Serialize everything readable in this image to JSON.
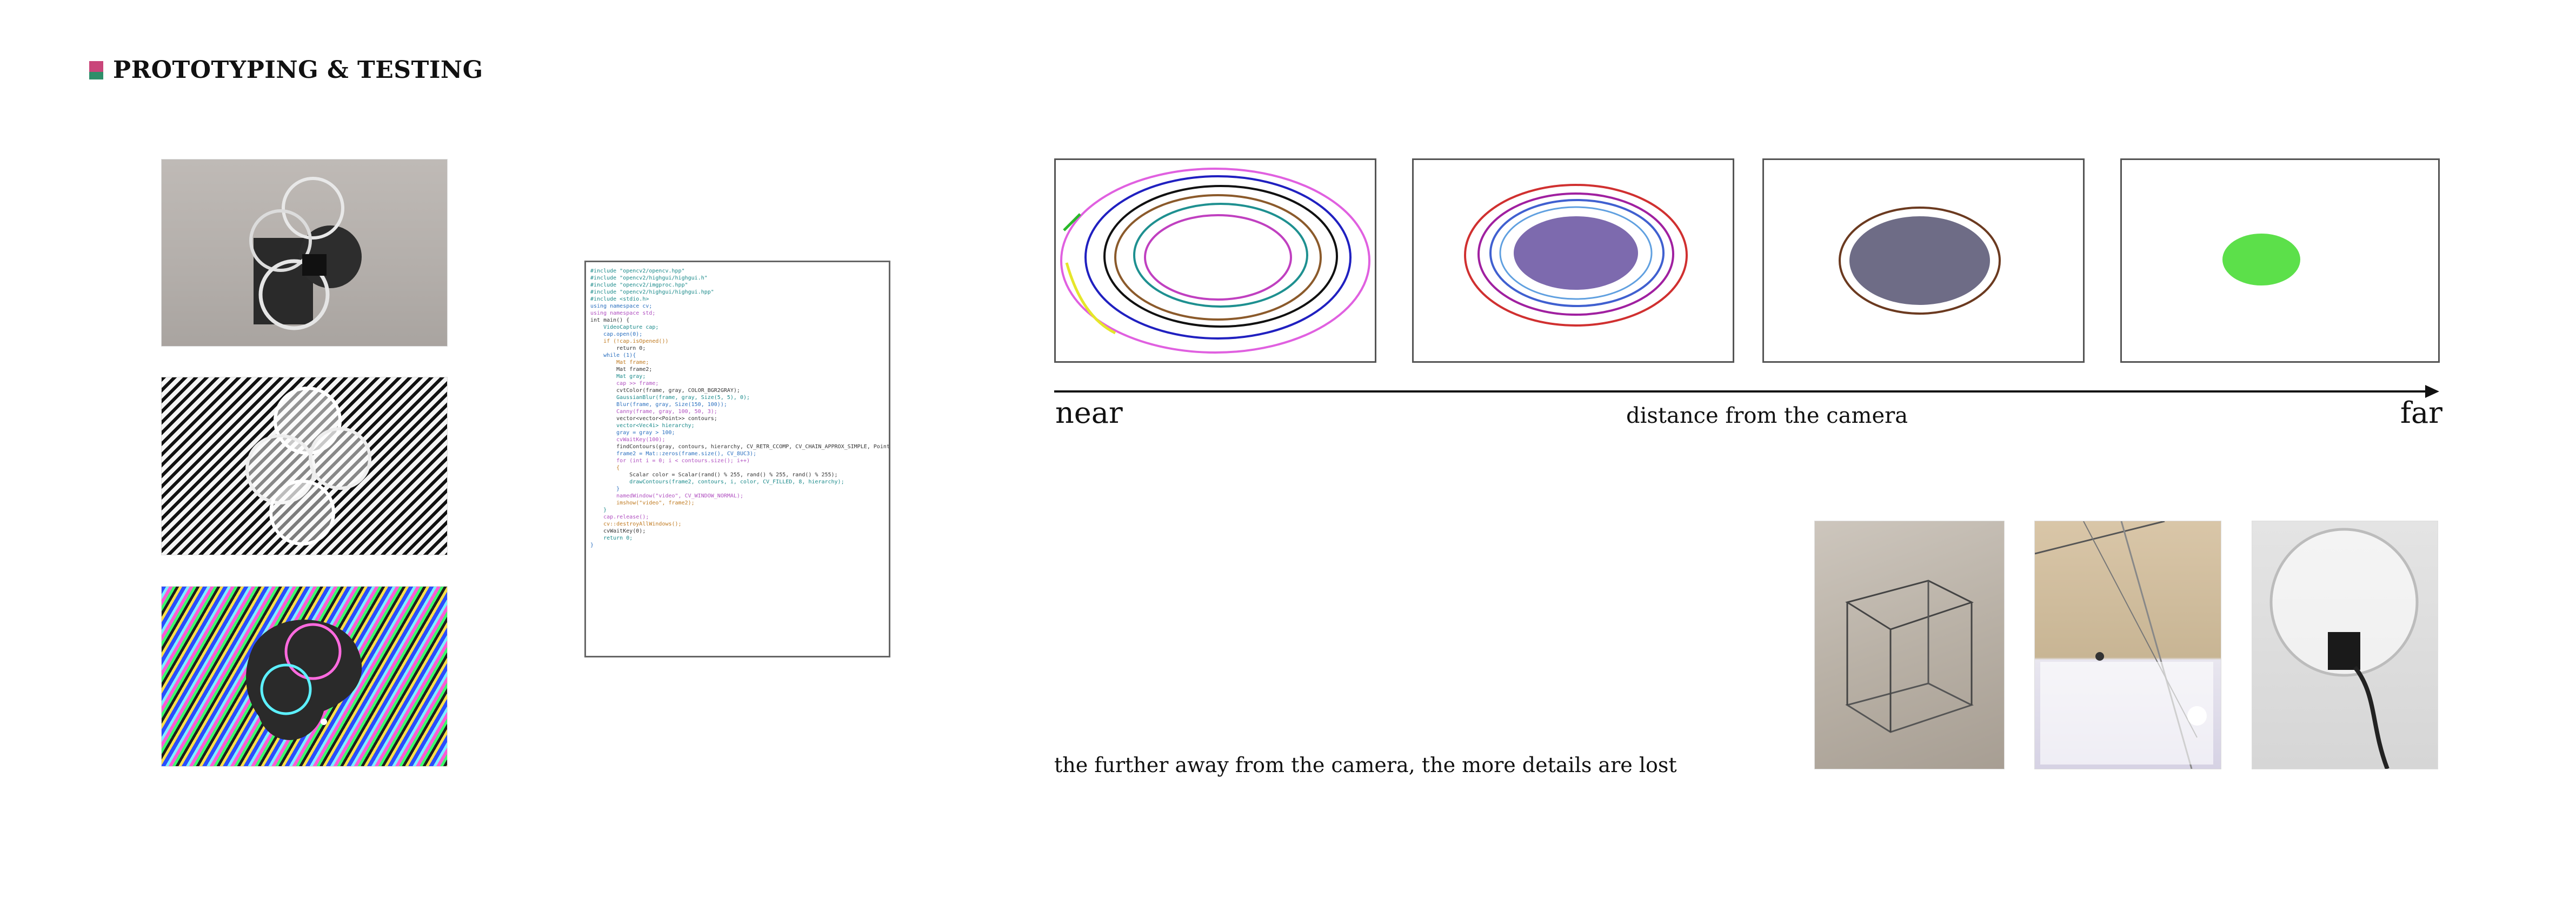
{
  "section": {
    "title": "PROTOTYPING & TESTING"
  },
  "axis": {
    "near_label": "near",
    "middle_label": "distance from the camera",
    "far_label": "far"
  },
  "caption": "the further away from the camera, the more details are lost",
  "code_lines": [
    "#include \"opencv2/opencv.hpp\"",
    "#include \"opencv2/highgui/highgui.h\"",
    "#include \"opencv2/imgproc.hpp\"",
    "#include \"opencv2/highgui/highgui.hpp\"",
    "#include <stdio.h>",
    "",
    "using namespace cv;",
    "using namespace std;",
    "",
    "int main() {",
    "    VideoCapture cap;",
    "    cap.open(0);",
    "",
    "    if (!cap.isOpened())",
    "        return 0;",
    "",
    "    while (1){",
    "",
    "        Mat frame;",
    "        Mat frame2;",
    "        Mat gray;",
    "",
    "        cap >> frame;",
    "",
    "        cvtColor(frame, gray, COLOR_BGR2GRAY);",
    "        GaussianBlur(frame, gray, Size(5, 5), 0);",
    "        Blur(frame, gray, Size(150, 100));",
    "        Canny(frame, gray, 100, 50, 3);",
    "",
    "        vector<vector<Point>> contours;",
    "        vector<Vec4i> hierarchy;",
    "        gray = gray > 100;",
    "        cvWaitKey(100);",
    "",
    "        findContours(gray, contours, hierarchy, CV_RETR_CCOMP, CV_CHAIN_APPROX_SIMPLE, Point(0));",
    "",
    "        frame2 = Mat::zeros(frame.size(), CV_8UC3);",
    "        for (int i = 0; i < contours.size(); i++)",
    "        {",
    "            Scalar color = Scalar(rand() % 255, rand() % 255, rand() % 255);",
    "            drawContours(frame2, contours, i, color, CV_FILLED, 8, hierarchy);",
    "        }",
    "        namedWindow(\"video\", CV_WINDOW_NORMAL);",
    "        imshow(\"video\", frame2);",
    "",
    "    }",
    "",
    "    cap.release();",
    "    cv::destroyAllWindows();",
    "    cvWaitKey(0);",
    "    return 0;",
    "}"
  ]
}
